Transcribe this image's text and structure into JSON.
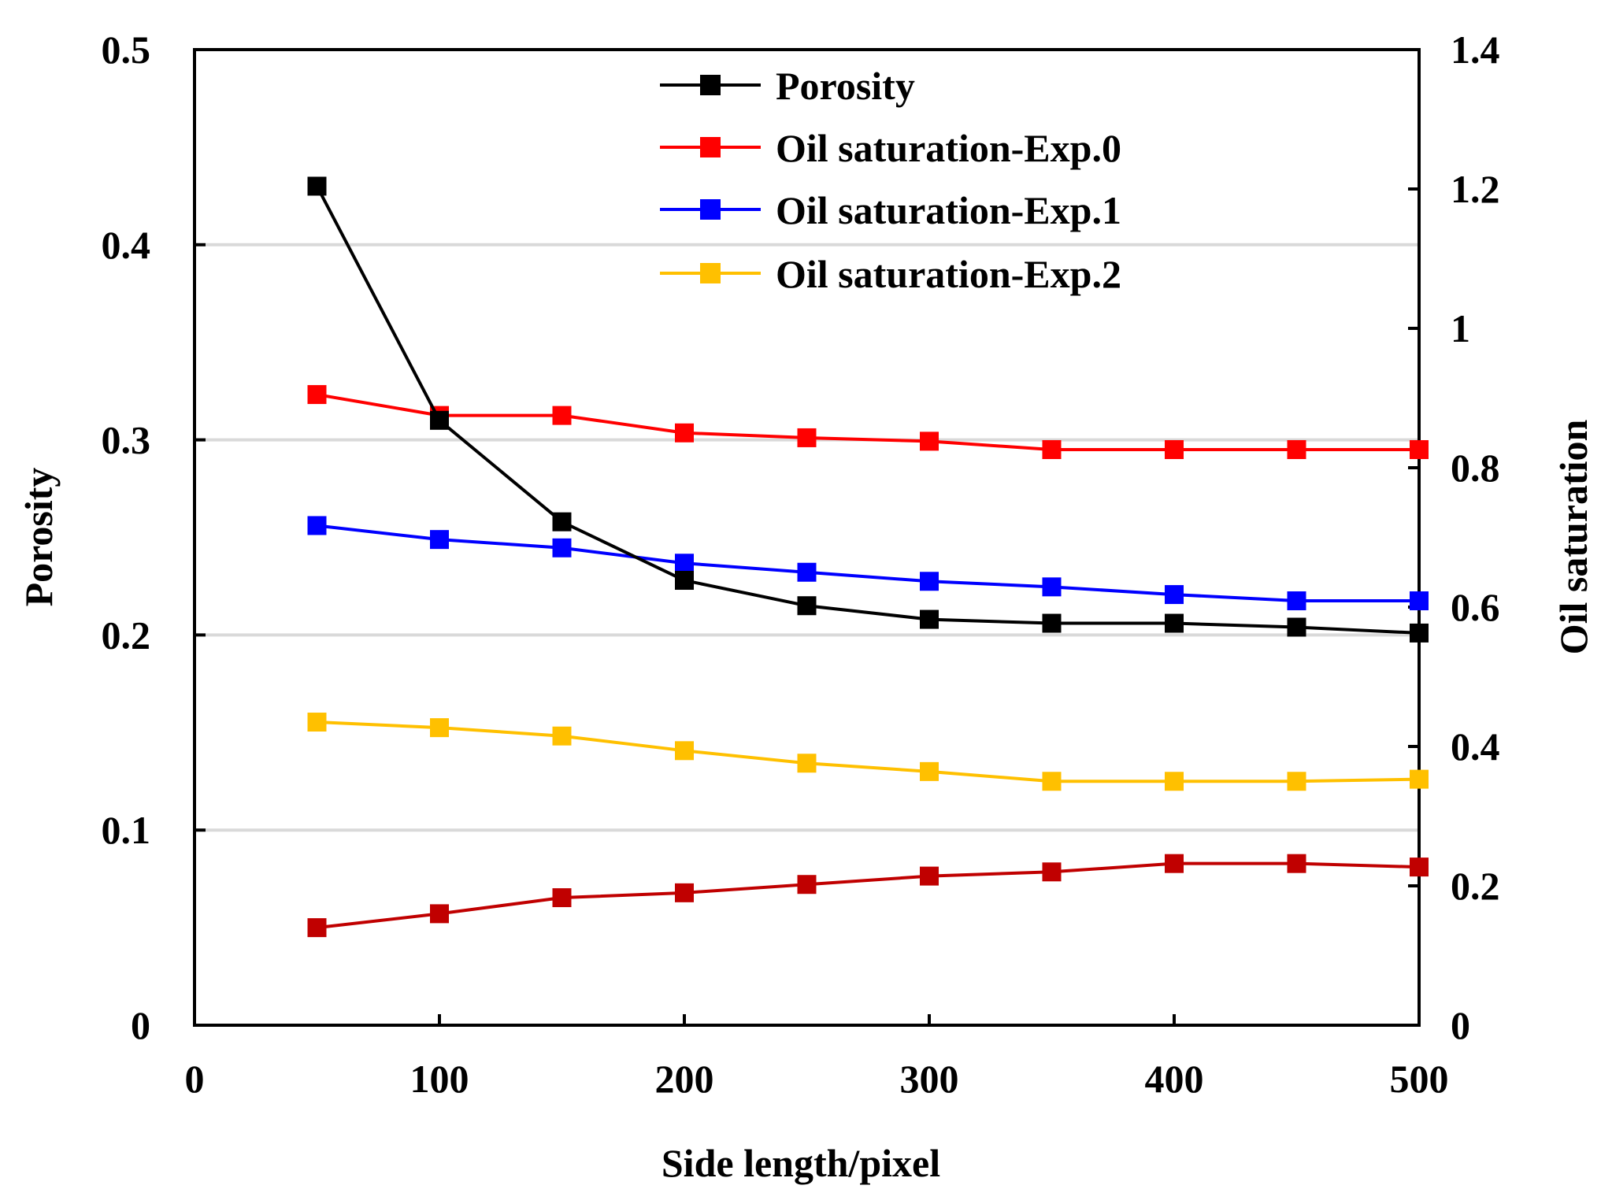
{
  "chart_data": {
    "type": "line",
    "xlabel": "Side length/pixel",
    "ylabel_left": "Porosity",
    "ylabel_right": "Oil saturation",
    "xlim": [
      0,
      500
    ],
    "ylim_left": [
      0,
      0.5
    ],
    "ylim_right": [
      0,
      1.4
    ],
    "x_ticks": [
      "0",
      "100",
      "200",
      "300",
      "400",
      "500"
    ],
    "y_left_ticks": [
      "0",
      "0.1",
      "0.2",
      "0.3",
      "0.4",
      "0.5"
    ],
    "y_right_ticks": [
      "0",
      "0.2",
      "0.4",
      "0.6",
      "0.8",
      "1",
      "1.2",
      "1.4"
    ],
    "grid": "horizontal",
    "legend_position": "top-center",
    "x": [
      50,
      100,
      150,
      200,
      250,
      300,
      350,
      400,
      450,
      500
    ],
    "series": [
      {
        "name": "Porosity",
        "axis": "left",
        "color": "#000000",
        "values": [
          0.43,
          0.31,
          0.258,
          0.228,
          0.215,
          0.208,
          0.206,
          0.206,
          0.204,
          0.201
        ]
      },
      {
        "name": "Oil saturation-Exp.0",
        "axis": "right",
        "color": "#ff0000",
        "values": [
          0.905,
          0.875,
          0.875,
          0.85,
          0.843,
          0.838,
          0.826,
          0.826,
          0.826,
          0.826
        ]
      },
      {
        "name": "Oil saturation-Exp.1",
        "axis": "right",
        "color": "#0000ff",
        "values": [
          0.717,
          0.697,
          0.685,
          0.663,
          0.65,
          0.637,
          0.629,
          0.618,
          0.609,
          0.609
        ]
      },
      {
        "name": "Oil saturation-Exp.2",
        "axis": "right",
        "color": "#ffc000",
        "values": [
          0.435,
          0.427,
          0.415,
          0.394,
          0.376,
          0.364,
          0.35,
          0.35,
          0.35,
          0.353
        ]
      },
      {
        "name": "",
        "axis": "right",
        "color": "#c00000",
        "values": [
          0.14,
          0.16,
          0.183,
          0.19,
          0.202,
          0.214,
          0.22,
          0.232,
          0.232,
          0.227
        ]
      }
    ]
  }
}
